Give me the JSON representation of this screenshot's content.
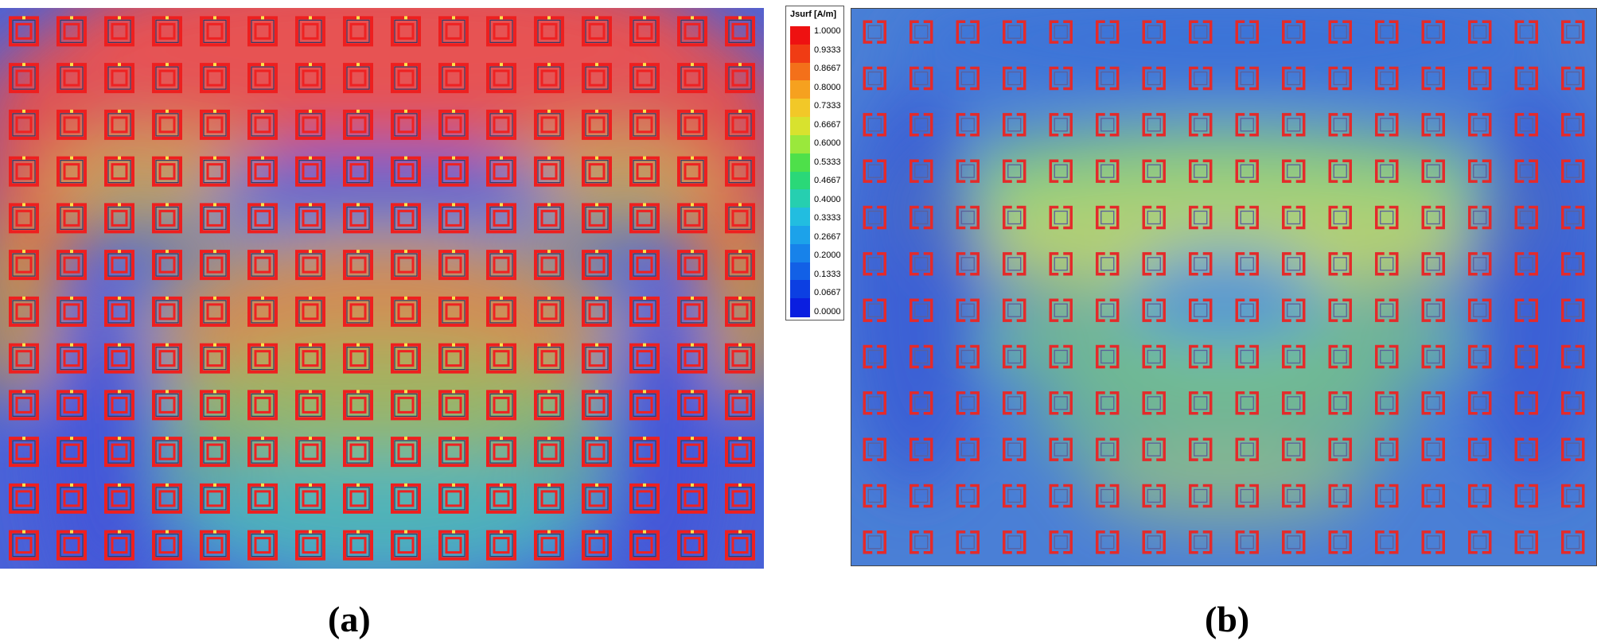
{
  "legend": {
    "title": "Jsurf [A/m]",
    "ticks": [
      "1.0000",
      "0.9333",
      "0.8667",
      "0.8000",
      "0.7333",
      "0.6667",
      "0.6000",
      "0.5333",
      "0.4667",
      "0.4000",
      "0.3333",
      "0.2667",
      "0.2000",
      "0.1333",
      "0.0667",
      "0.0000"
    ],
    "colors": [
      "#ee1111",
      "#f03c14",
      "#f3701a",
      "#f6a11f",
      "#f2c828",
      "#d8e22e",
      "#9ae83c",
      "#4ee04a",
      "#2ad878",
      "#26cfb0",
      "#22bde0",
      "#1ca2ea",
      "#1782ea",
      "#1260e6",
      "#0c3fe2",
      "#0a1ee0"
    ]
  },
  "panels": [
    {
      "id": "a",
      "caption": "(a)",
      "rows": 12,
      "cols": 16,
      "background": "#4a63d8"
    },
    {
      "id": "b",
      "caption": "(b)",
      "rows": 12,
      "cols": 16,
      "background": "#4a7fd6"
    }
  ]
}
